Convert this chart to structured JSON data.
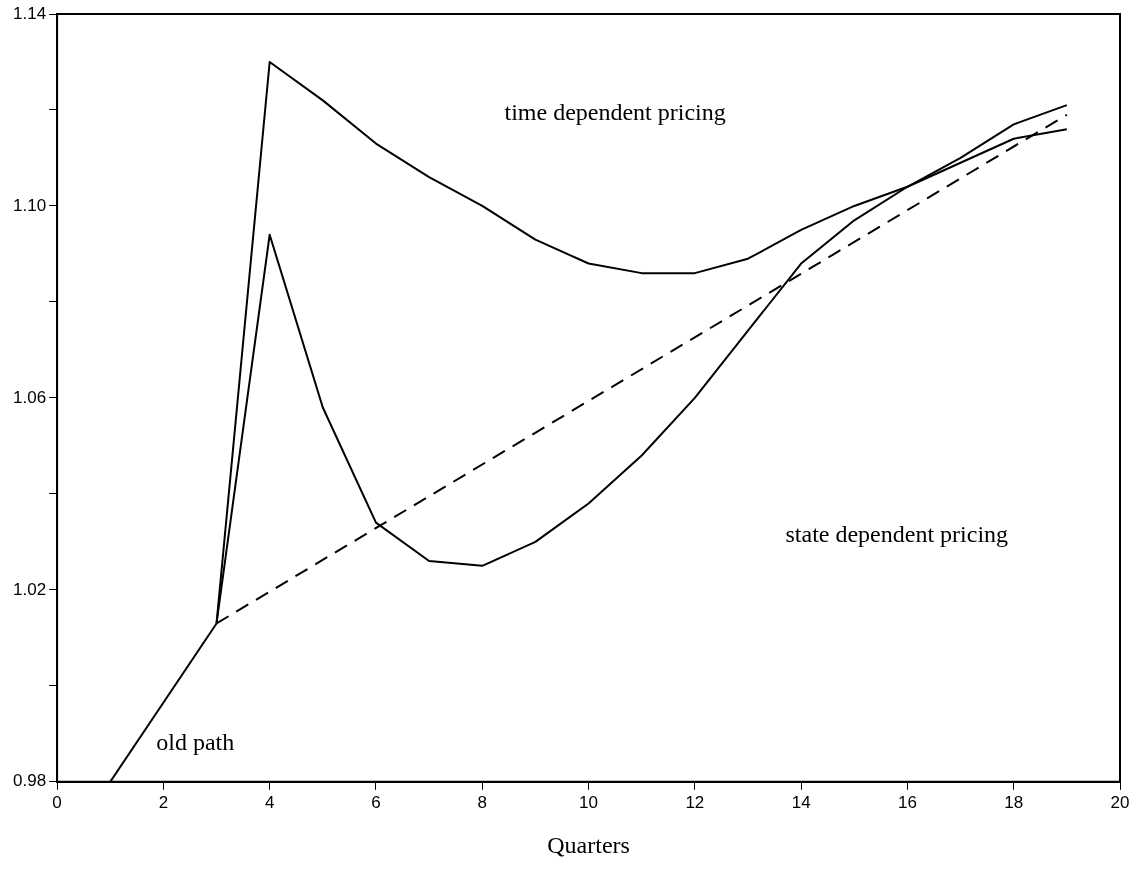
{
  "chart_data": {
    "type": "line",
    "xlabel": "Quarters",
    "xlim": [
      0,
      20
    ],
    "xticks": [
      0,
      2,
      4,
      6,
      8,
      10,
      12,
      14,
      16,
      18,
      20
    ],
    "ylim": [
      0.98,
      1.14
    ],
    "yticks": [
      {
        "value": 0.98,
        "label": "0.98"
      },
      {
        "value": 1.0,
        "label": null
      },
      {
        "value": 1.02,
        "label": "1.02"
      },
      {
        "value": 1.04,
        "label": null
      },
      {
        "value": 1.06,
        "label": "1.06"
      },
      {
        "value": 1.08,
        "label": null
      },
      {
        "value": 1.1,
        "label": "1.10"
      },
      {
        "value": 1.12,
        "label": null
      },
      {
        "value": 1.14,
        "label": "1.14"
      }
    ],
    "grid": false,
    "legend": false,
    "marker": "none",
    "series": [
      {
        "color": "#000000",
        "line_style": "solid",
        "x": [
          1,
          3
        ],
        "values": [
          0.98,
          1.013
        ]
      },
      {
        "color": "#000000",
        "line_style": "dashed",
        "x": [
          3,
          19
        ],
        "values": [
          1.013,
          1.119
        ]
      },
      {
        "color": "#000000",
        "line_style": "solid",
        "x": [
          3,
          4,
          5,
          6,
          7,
          8,
          9,
          10,
          11,
          12,
          13,
          14,
          15,
          16,
          17,
          18,
          19
        ],
        "values": [
          1.013,
          1.13,
          1.122,
          1.113,
          1.106,
          1.1,
          1.093,
          1.088,
          1.086,
          1.086,
          1.089,
          1.095,
          1.1,
          1.104,
          1.109,
          1.114,
          1.116
        ]
      },
      {
        "color": "#000000",
        "line_style": "solid",
        "x": [
          3,
          4,
          5,
          6,
          7,
          8,
          9,
          10,
          11,
          12,
          13,
          14,
          15,
          16,
          17,
          18,
          19
        ],
        "values": [
          1.013,
          1.094,
          1.058,
          1.034,
          1.026,
          1.025,
          1.03,
          1.038,
          1.048,
          1.06,
          1.074,
          1.088,
          1.097,
          1.104,
          1.11,
          1.117,
          1.121
        ]
      }
    ],
    "annotations": [
      "time dependent pricing",
      "state dependent pricing",
      "old path"
    ]
  }
}
